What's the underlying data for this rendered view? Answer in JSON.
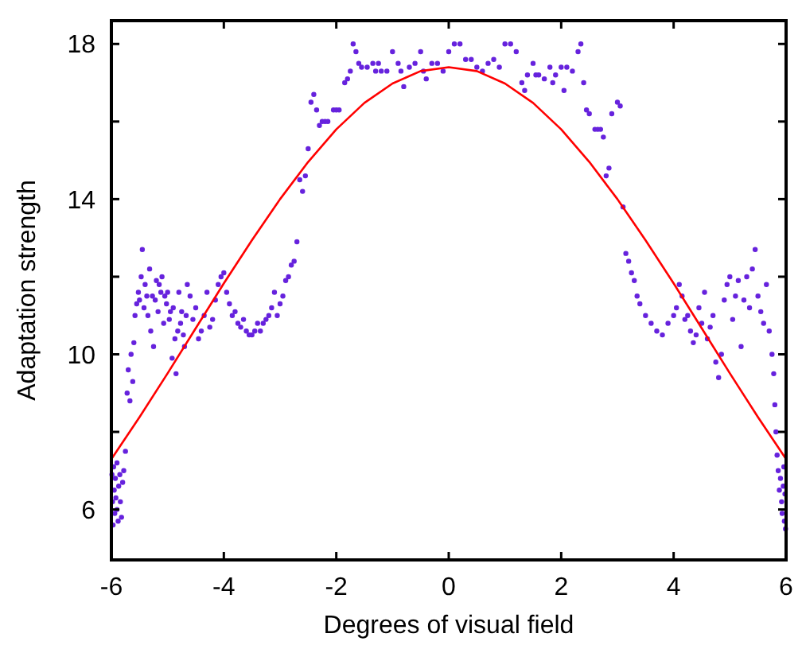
{
  "chart_data": {
    "type": "scatter",
    "xlabel": "Degrees of visual field",
    "ylabel": "Adaptation strength",
    "xlim": [
      -6,
      6
    ],
    "ylim": [
      4.7,
      18.6
    ],
    "xticks": [
      -6,
      -4,
      -2,
      0,
      2,
      4,
      6
    ],
    "yticks": [
      6,
      {
        "value": 8,
        "label": null
      },
      10,
      {
        "value": 12,
        "label": null
      },
      14,
      {
        "value": 16,
        "label": null
      },
      18
    ],
    "grid": false,
    "marker": "circle",
    "series": [
      {
        "color": "#6622dd",
        "x": [
          -5.99,
          -5.98,
          -5.97,
          -5.96,
          -5.95,
          -5.94,
          -5.93,
          -5.92,
          -5.9,
          -5.9,
          -5.88,
          -5.87,
          -5.85,
          -5.84,
          -5.82,
          -5.8,
          -5.78,
          -5.75,
          -5.72,
          -5.7,
          -5.67,
          -5.65,
          -5.62,
          -5.6,
          -5.58,
          -5.55,
          -5.52,
          -5.5,
          -5.47,
          -5.45,
          -5.42,
          -5.4,
          -5.37,
          -5.35,
          -5.32,
          -5.3,
          -5.27,
          -5.25,
          -5.22,
          -5.2,
          -5.17,
          -5.15,
          -5.12,
          -5.1,
          -5.07,
          -5.05,
          -5.02,
          -5.0,
          -4.97,
          -4.95,
          -4.92,
          -4.9,
          -4.87,
          -4.85,
          -4.82,
          -4.8,
          -4.77,
          -4.75,
          -4.72,
          -4.7,
          -4.67,
          -4.65,
          -4.6,
          -4.55,
          -4.5,
          -4.45,
          -4.4,
          -4.35,
          -4.3,
          -4.25,
          -4.2,
          -4.15,
          -4.1,
          -4.05,
          -4.0,
          -3.95,
          -3.9,
          -3.85,
          -3.8,
          -3.75,
          -3.7,
          -3.65,
          -3.6,
          -3.55,
          -3.5,
          -3.45,
          -3.4,
          -3.35,
          -3.3,
          -3.25,
          -3.2,
          -3.15,
          -3.1,
          -3.05,
          -3.0,
          -2.95,
          -2.9,
          -2.85,
          -2.8,
          -2.75,
          -2.7,
          -2.65,
          -2.6,
          -2.55,
          -2.5,
          -2.45,
          -2.4,
          -2.35,
          -2.3,
          -2.25,
          -2.2,
          -2.15,
          -2.05,
          -2.0,
          -1.95,
          -1.85,
          -1.8,
          -1.75,
          -1.7,
          -1.65,
          -1.6,
          -1.55,
          -1.45,
          -1.35,
          -1.3,
          -1.25,
          -1.2,
          -1.1,
          -1.0,
          -0.9,
          -0.85,
          -0.8,
          -0.7,
          -0.6,
          -0.5,
          -0.45,
          -0.4,
          -0.3,
          -0.2,
          -0.1,
          0,
          0.1,
          0.2,
          0.3,
          0.4,
          0.5,
          0.6,
          0.7,
          0.8,
          0.9,
          1.0,
          1.1,
          1.2,
          1.3,
          1.35,
          1.4,
          1.5,
          1.55,
          1.6,
          1.7,
          1.8,
          1.85,
          1.9,
          2.0,
          2.05,
          2.1,
          2.2,
          2.3,
          2.35,
          2.4,
          2.45,
          2.5,
          2.6,
          2.65,
          2.7,
          2.75,
          2.8,
          2.85,
          2.9,
          3.0,
          3.05,
          3.1,
          3.15,
          3.2,
          3.25,
          3.3,
          3.35,
          3.4,
          3.5,
          3.6,
          3.7,
          3.8,
          3.9,
          4.0,
          4.05,
          4.1,
          4.15,
          4.2,
          4.25,
          4.3,
          4.35,
          4.4,
          4.45,
          4.5,
          4.55,
          4.6,
          4.65,
          4.7,
          4.75,
          4.8,
          4.85,
          4.9,
          4.95,
          5.0,
          5.05,
          5.1,
          5.15,
          5.2,
          5.25,
          5.3,
          5.35,
          5.4,
          5.45,
          5.5,
          5.55,
          5.6,
          5.65,
          5.7,
          5.75,
          5.78,
          5.8,
          5.82,
          5.84,
          5.86,
          5.88,
          5.9,
          5.92,
          5.93,
          5.95,
          5.96,
          5.97,
          5.98,
          5.99
        ],
        "values": [
          6.9,
          6.2,
          5.6,
          7.1,
          6.5,
          5.9,
          6.8,
          6.3,
          7.2,
          6.0,
          5.7,
          6.6,
          6.9,
          6.2,
          5.8,
          6.7,
          7.0,
          7.5,
          9.0,
          9.6,
          8.8,
          10.0,
          9.3,
          10.3,
          11.0,
          11.3,
          11.6,
          11.4,
          12.0,
          12.7,
          11.2,
          11.8,
          11.5,
          11.0,
          12.2,
          10.6,
          11.5,
          10.2,
          11.4,
          11.9,
          11.1,
          11.8,
          11.6,
          12.0,
          10.8,
          11.5,
          11.3,
          11.6,
          10.9,
          11.1,
          9.9,
          11.2,
          10.4,
          9.5,
          10.6,
          11.6,
          10.8,
          11.1,
          10.5,
          10.2,
          11.0,
          11.8,
          11.5,
          10.9,
          11.2,
          10.4,
          10.6,
          11.0,
          11.6,
          10.7,
          10.9,
          11.4,
          11.8,
          12.0,
          12.1,
          11.6,
          11.3,
          11.0,
          11.1,
          10.8,
          10.7,
          10.9,
          10.6,
          10.5,
          10.5,
          10.6,
          10.8,
          10.6,
          10.8,
          10.9,
          11.0,
          11.2,
          11.6,
          11.0,
          11.3,
          11.5,
          11.9,
          12.0,
          12.3,
          12.4,
          12.9,
          14.5,
          14.2,
          14.6,
          15.3,
          16.5,
          16.7,
          16.3,
          15.9,
          16.0,
          16.0,
          16.0,
          16.3,
          16.3,
          16.3,
          17.0,
          17.1,
          17.3,
          18.0,
          17.8,
          17.5,
          17.4,
          17.4,
          17.5,
          17.3,
          17.5,
          17.3,
          17.3,
          17.8,
          17.5,
          17.3,
          16.9,
          17.4,
          17.5,
          17.8,
          17.3,
          17.1,
          17.5,
          17.5,
          17.3,
          17.8,
          18.0,
          18.0,
          17.6,
          17.6,
          17.4,
          17.3,
          17.5,
          17.6,
          17.4,
          18.0,
          18.0,
          17.8,
          17.0,
          16.8,
          17.2,
          17.5,
          17.2,
          17.2,
          17.1,
          17.4,
          17.0,
          17.2,
          17.4,
          16.8,
          17.4,
          17.3,
          17.8,
          18.0,
          17.0,
          16.3,
          16.2,
          15.8,
          15.8,
          15.8,
          15.6,
          14.6,
          14.8,
          16.2,
          16.5,
          16.4,
          13.8,
          12.6,
          12.4,
          12.1,
          11.9,
          11.5,
          11.3,
          11.0,
          10.8,
          10.6,
          10.5,
          10.8,
          11.0,
          11.2,
          11.8,
          11.5,
          10.9,
          11.0,
          10.6,
          10.3,
          10.5,
          11.2,
          10.8,
          11.6,
          10.4,
          10.7,
          11.0,
          9.8,
          9.4,
          10.0,
          11.4,
          11.8,
          12.0,
          10.9,
          11.5,
          11.9,
          10.2,
          11.4,
          12.0,
          11.2,
          12.2,
          12.7,
          11.5,
          11.1,
          10.8,
          11.8,
          10.6,
          10.0,
          9.5,
          8.7,
          8.0,
          7.4,
          7.0,
          6.5,
          6.8,
          6.2,
          5.9,
          6.6,
          7.1,
          5.7,
          6.4,
          5.5
        ]
      },
      {
        "type": "line",
        "marker": "none",
        "line_style": "solid",
        "color": "#ff0000",
        "x": [
          -6,
          -5.5,
          -5,
          -4.5,
          -4,
          -3.5,
          -3,
          -2.5,
          -2,
          -1.5,
          -1,
          -0.5,
          0,
          0.5,
          1,
          1.5,
          2,
          2.5,
          3,
          3.5,
          4,
          4.5,
          5,
          5.5,
          6
        ],
        "values": [
          7.3,
          8.38,
          9.51,
          10.67,
          11.83,
          12.94,
          14.0,
          14.96,
          15.8,
          16.48,
          16.98,
          17.3,
          17.4,
          17.3,
          16.98,
          16.48,
          15.8,
          14.96,
          14.0,
          12.94,
          11.83,
          10.67,
          9.51,
          8.38,
          7.3
        ]
      }
    ]
  }
}
